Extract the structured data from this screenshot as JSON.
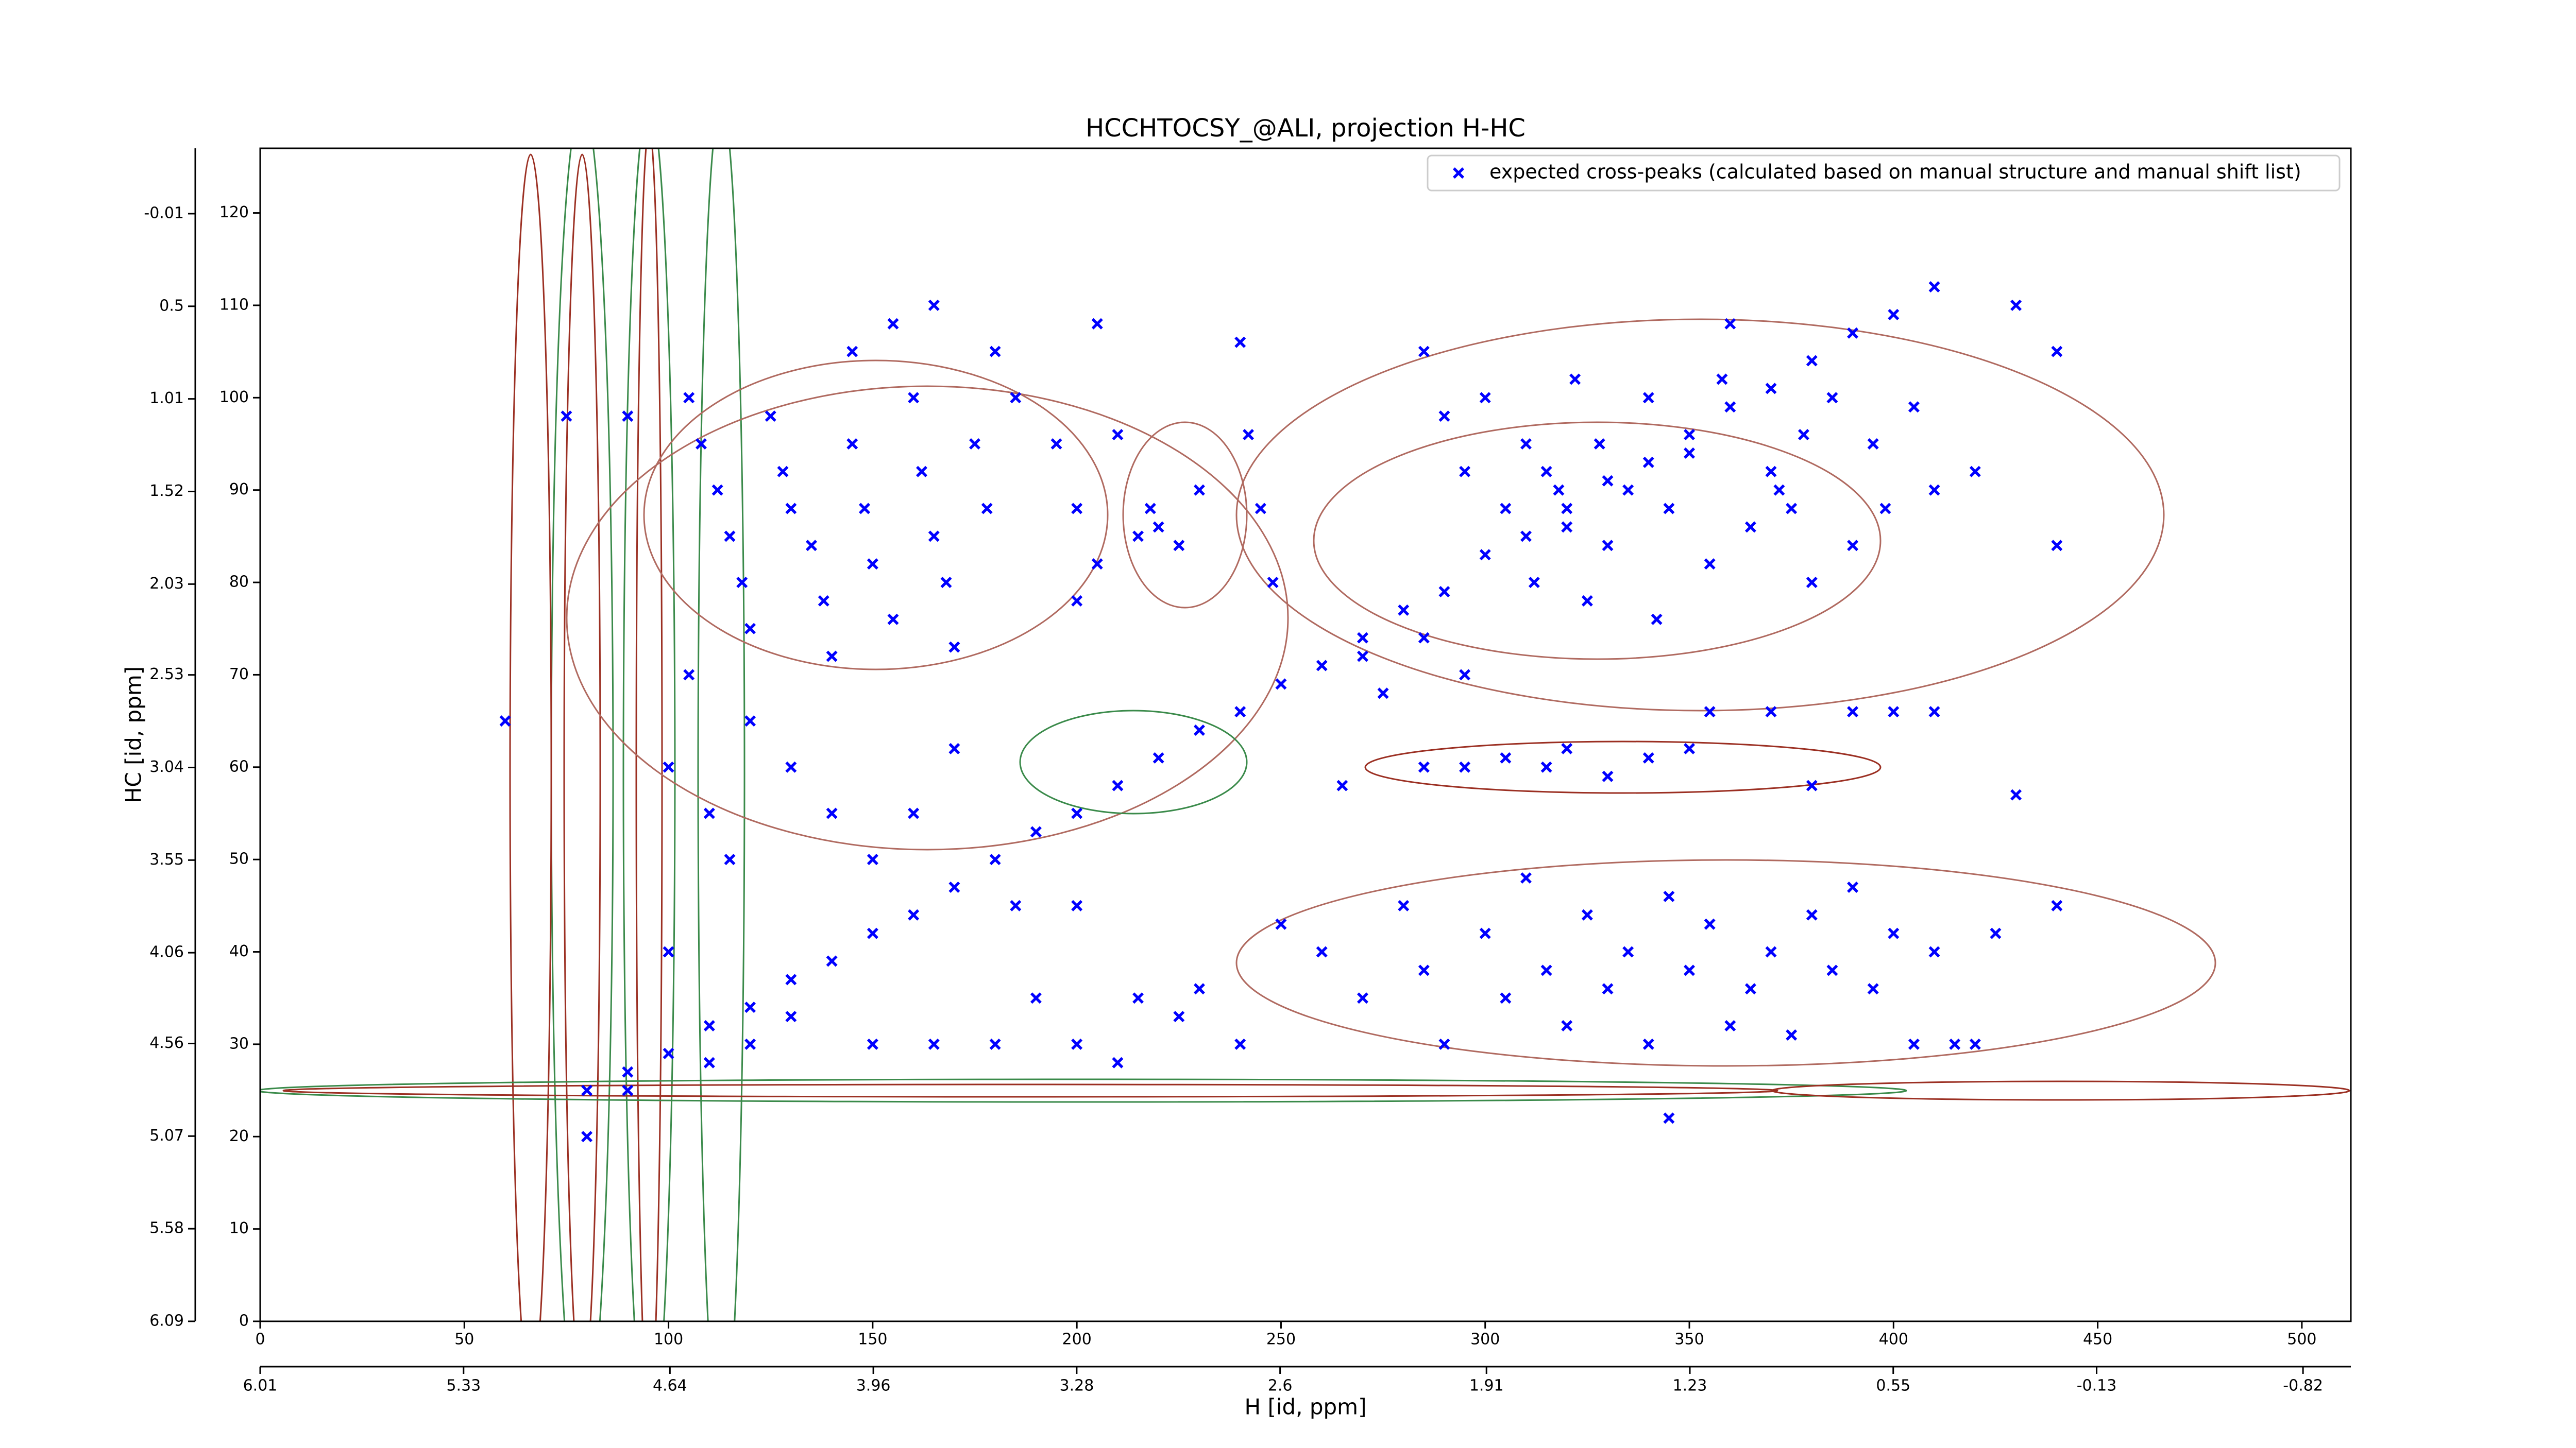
{
  "chart_data": {
    "type": "scatter",
    "title": "HCCHTOCSY_@ALI, projection H-HC",
    "xlabel": "H [id, ppm]",
    "ylabel": "HC [id, ppm]",
    "xlim": [
      0,
      512
    ],
    "xticks": [
      0,
      50,
      100,
      150,
      200,
      250,
      300,
      350,
      400,
      450,
      500
    ],
    "ylim": [
      0,
      127
    ],
    "yticks": [
      0,
      10,
      20,
      30,
      40,
      50,
      60,
      70,
      80,
      90,
      100,
      110,
      120
    ],
    "x2lim": [
      6.01,
      -0.98
    ],
    "x2ticks": [
      6.01,
      5.33,
      4.64,
      3.96,
      3.28,
      2.6,
      1.91,
      1.23,
      0.55,
      -0.13,
      -0.82
    ],
    "y2lim": [
      6.09,
      -0.37
    ],
    "y2ticks": [
      6.09,
      5.58,
      5.07,
      4.56,
      4.06,
      3.55,
      3.04,
      2.53,
      2.03,
      1.52,
      1.01,
      0.5,
      -0.01
    ],
    "legend": "upper right",
    "x": [
      80,
      90,
      100,
      110,
      120,
      130,
      140,
      150,
      160,
      170,
      180,
      190,
      200,
      210,
      220,
      230,
      240,
      250,
      260,
      270,
      280,
      290,
      300,
      310,
      320,
      330,
      340,
      350,
      360,
      370,
      380,
      390,
      400,
      410,
      105,
      108,
      112,
      115,
      118,
      120,
      125,
      128,
      130,
      135,
      138,
      140,
      145,
      148,
      150,
      155,
      160,
      162,
      165,
      168,
      170,
      175,
      178,
      145,
      155,
      165,
      180,
      185,
      195,
      200,
      205,
      210,
      215,
      218,
      220,
      225,
      230,
      240,
      242,
      245,
      248,
      205,
      200,
      285,
      290,
      295,
      300,
      305,
      310,
      312,
      315,
      318,
      320,
      322,
      325,
      328,
      330,
      335,
      340,
      342,
      345,
      350,
      355,
      358,
      360,
      365,
      370,
      372,
      375,
      378,
      380,
      385,
      390,
      395,
      398,
      405,
      410,
      420,
      430,
      440,
      440,
      270,
      275,
      285,
      295,
      285,
      295,
      305,
      315,
      320,
      330,
      340,
      350,
      355,
      370,
      390,
      400,
      410,
      380,
      430,
      265,
      260,
      270,
      280,
      285,
      290,
      300,
      305,
      310,
      315,
      320,
      325,
      330,
      335,
      340,
      345,
      350,
      355,
      360,
      365,
      370,
      375,
      380,
      385,
      390,
      395,
      400,
      405,
      410,
      415,
      420,
      425,
      440,
      345,
      250,
      240,
      230,
      60,
      75,
      90,
      100,
      105,
      110,
      115,
      120,
      130,
      140,
      150,
      160,
      170,
      100,
      110,
      120,
      130,
      150,
      165,
      180,
      190,
      200,
      210,
      215,
      225,
      185,
      200,
      80,
      90
    ],
    "series": [
      {
        "name": "expected cross-peaks (calculated based on manual structure and manual shift list)",
        "color": "#0000ff",
        "values": [
          25,
          27,
          29,
          32,
          34,
          37,
          39,
          42,
          44,
          47,
          50,
          53,
          55,
          58,
          61,
          64,
          66,
          69,
          71,
          74,
          77,
          79,
          83,
          85,
          88,
          91,
          93,
          96,
          99,
          101,
          104,
          107,
          109,
          112,
          100,
          95,
          90,
          85,
          80,
          75,
          98,
          92,
          88,
          84,
          78,
          72,
          95,
          88,
          82,
          76,
          100,
          92,
          85,
          80,
          73,
          95,
          88,
          105,
          108,
          110,
          105,
          100,
          95,
          88,
          82,
          96,
          85,
          88,
          86,
          84,
          90,
          106,
          96,
          88,
          80,
          108,
          78,
          105,
          98,
          92,
          100,
          88,
          95,
          80,
          92,
          90,
          86,
          102,
          78,
          95,
          84,
          90,
          100,
          76,
          88,
          94,
          82,
          102,
          108,
          86,
          92,
          90,
          88,
          96,
          80,
          100,
          84,
          95,
          88,
          99,
          90,
          92,
          110,
          105,
          84,
          72,
          68,
          74,
          70,
          60,
          60,
          61,
          60,
          62,
          59,
          61,
          62,
          66,
          66,
          66,
          66,
          66,
          58,
          57,
          58,
          40,
          35,
          45,
          38,
          30,
          42,
          35,
          48,
          38,
          32,
          44,
          36,
          40,
          30,
          46,
          38,
          43,
          32,
          36,
          40,
          31,
          44,
          38,
          47,
          36,
          42,
          30,
          40,
          30,
          30,
          42,
          45,
          22,
          43,
          30,
          36,
          65,
          98,
          98,
          60,
          70,
          55,
          50,
          65,
          60,
          55,
          50,
          55,
          62,
          40,
          28,
          30,
          33,
          30,
          30,
          30,
          35,
          30,
          28,
          35,
          33,
          45,
          45,
          20,
          25
        ]
      }
    ]
  }
}
